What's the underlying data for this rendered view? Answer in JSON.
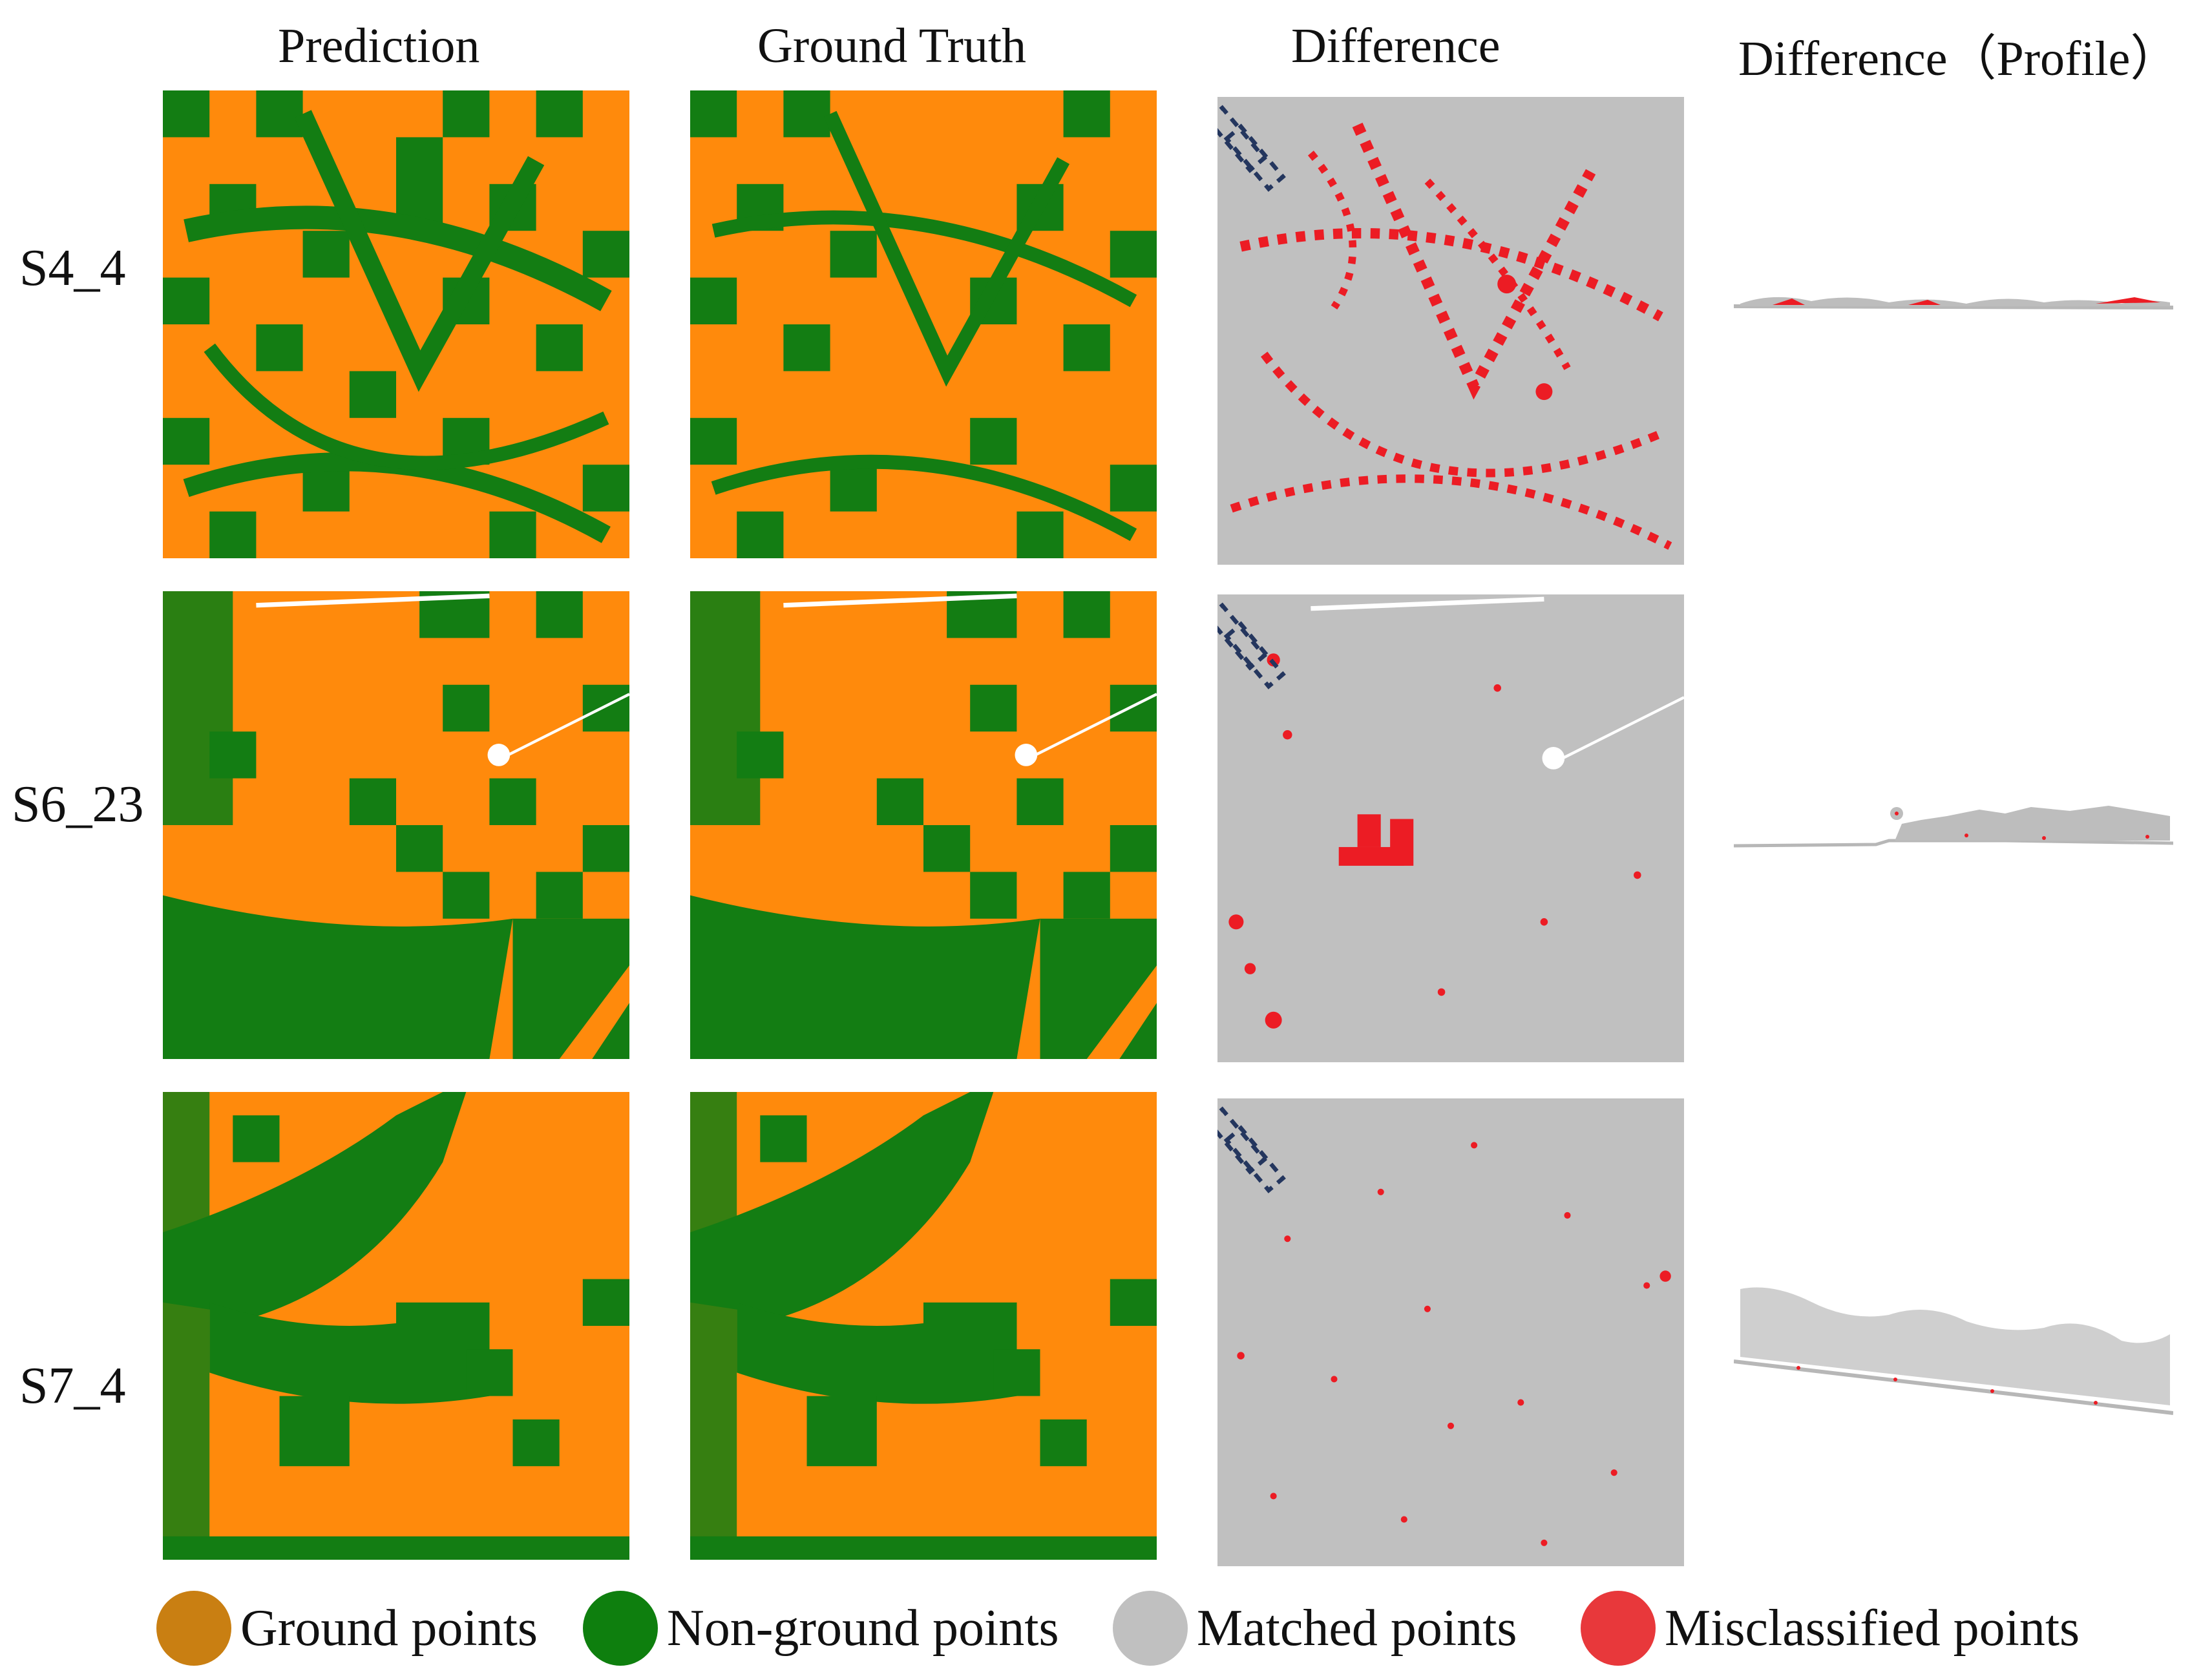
{
  "columns": [
    "Prediction",
    "Ground Truth",
    "Difference",
    "Difference（Profile）"
  ],
  "rows": [
    "S4_4",
    "S6_23",
    "S7_4"
  ],
  "legend": [
    {
      "label": "Ground points",
      "color": "#c97f12"
    },
    {
      "label": "Non-ground points",
      "color": "#0e7f0e"
    },
    {
      "label": "Matched points",
      "color": "#c0c0c0"
    },
    {
      "label": "Misclassified points",
      "color": "#e8383b"
    }
  ],
  "colors": {
    "ground": "#ff8a0c",
    "non_ground": "#137d13",
    "matched": "#c0c0c0",
    "misclassified": "#ec1c24",
    "profile_box": "#24365e"
  }
}
